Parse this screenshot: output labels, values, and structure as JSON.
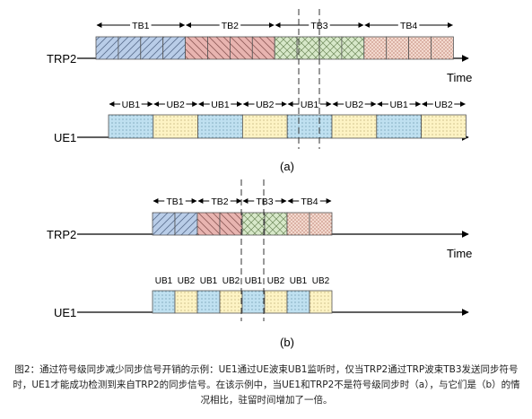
{
  "diagram_a": {
    "trp_label": "TRP2",
    "ue_label": "UE1",
    "time_label": "Time",
    "panel_label": "(a)",
    "tb_labels": [
      "TB1",
      "TB2",
      "TB3",
      "TB4"
    ],
    "ub_labels": [
      "UB1",
      "UB2",
      "UB1",
      "UB2",
      "UB1",
      "UB2",
      "UB1",
      "UB2"
    ]
  },
  "diagram_b": {
    "trp_label": "TRP2",
    "ue_label": "UE1",
    "time_label": "Time",
    "panel_label": "(b)",
    "tb_labels": [
      "TB1",
      "TB2",
      "TB3",
      "TB4"
    ],
    "ub_labels": [
      "UB1",
      "UB2",
      "UB1",
      "UB2",
      "UB1",
      "UB2",
      "UB1",
      "UB2"
    ]
  },
  "colors": {
    "tb1": "#b9cde8",
    "tb2": "#e8b4b0",
    "tb3": "#d7e8c9",
    "tb4": "#f3d9cf",
    "ub1": "#bfe0f0",
    "ub2": "#fdf3c4"
  },
  "caption": "图2：通过符号级同步减少同步信号开销的示例：UE1通过UE波束UB1监听时，仅当TRP2通过TRP波束TB3发送同步符号时，UE1才能成功检测到来自TRP2的同步信号。在该示例中，当UE1和TRP2不是符号级同步时（a），与它们是（b）的情况相比，驻留时间增加了一倍。"
}
